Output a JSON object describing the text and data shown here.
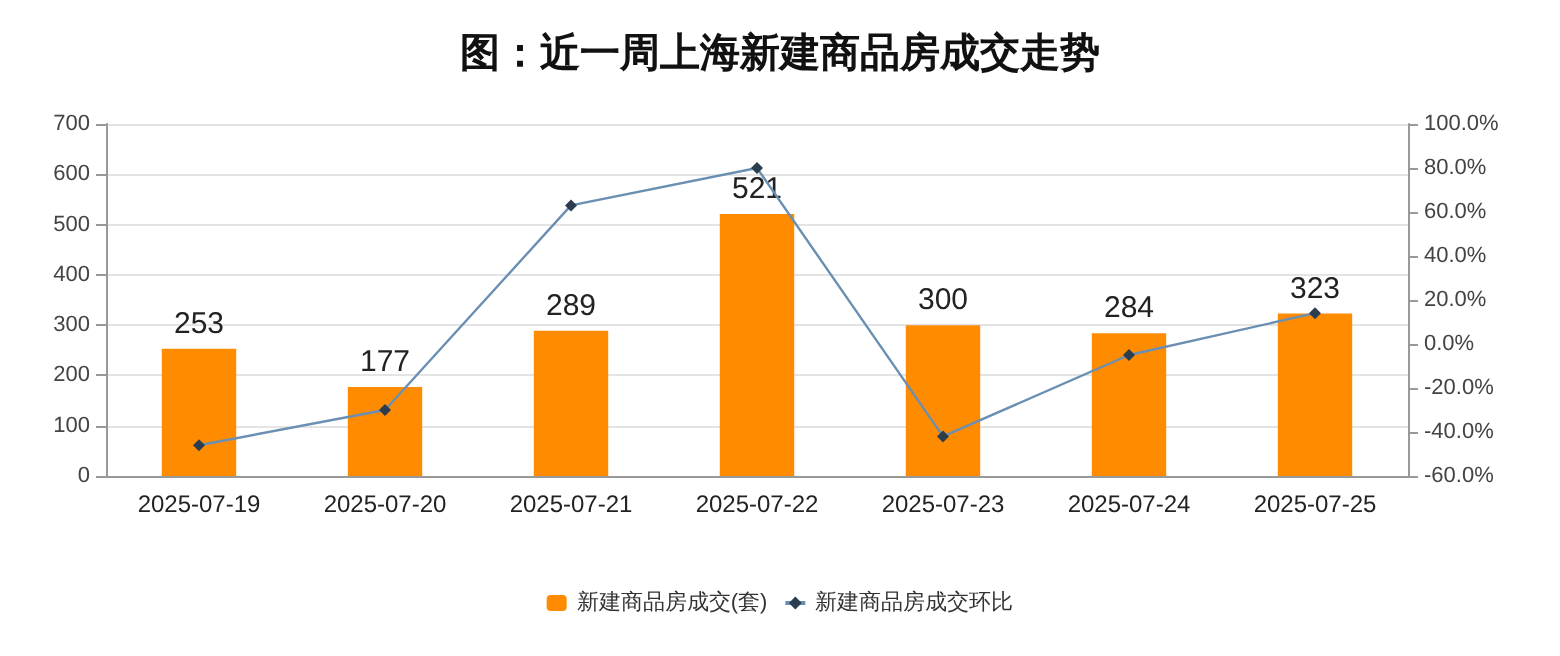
{
  "chart_data": {
    "type": "bar",
    "title": "图：近一周上海新建商品房成交走势",
    "categories": [
      "2025-07-19",
      "2025-07-20",
      "2025-07-21",
      "2025-07-22",
      "2025-07-23",
      "2025-07-24",
      "2025-07-25"
    ],
    "series": [
      {
        "name": "新建商品房成交(套)",
        "color": "#ff8c00",
        "values": [
          253,
          177,
          289,
          521,
          300,
          284,
          323
        ],
        "value_labels": [
          "253",
          "177",
          "289",
          "521",
          "300",
          "284",
          "323"
        ]
      },
      {
        "name": "新建商品房成交环比",
        "type": "line",
        "axis": "y2",
        "color": "#6a8fb3",
        "marker": "diamond",
        "values": [
          -46,
          -30,
          63,
          80,
          -42,
          -5,
          14
        ]
      }
    ],
    "ylim": [
      0,
      700
    ],
    "yticks": [
      0,
      100,
      200,
      300,
      400,
      500,
      600,
      700
    ],
    "y2lim": [
      -60,
      100
    ],
    "y2ticks": [
      {
        "value": -60,
        "label": "-60.0%"
      },
      {
        "value": -40,
        "label": "-40.0%"
      },
      {
        "value": -20,
        "label": "-20.0%"
      },
      {
        "value": 0,
        "label": "0.0%"
      },
      {
        "value": 20,
        "label": "20.0%"
      },
      {
        "value": 40,
        "label": "40.0%"
      },
      {
        "value": 60,
        "label": "60.0%"
      },
      {
        "value": 80,
        "label": "80.0%"
      },
      {
        "value": 100,
        "label": "100.0%"
      }
    ],
    "grid": "y",
    "legend": "bottom"
  }
}
